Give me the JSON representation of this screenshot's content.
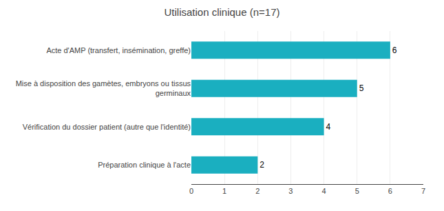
{
  "chart_data": {
    "type": "bar",
    "orientation": "horizontal",
    "title": "Utilisation clinique (n=17)",
    "categories": [
      "Préparation clinique à l'acte",
      "Vérification du dossier patient (autre que l'identité)",
      "Mise à disposition des gamètes, embryons ou tissus\ngerminaux",
      "Acte d'AMP (transfert, insémination, greffe)"
    ],
    "values": [
      2,
      4,
      5,
      6
    ],
    "color": "#1AAFC0",
    "xlim": [
      0,
      7
    ],
    "xticks": [
      0,
      1,
      2,
      3,
      4,
      5,
      6,
      7
    ],
    "grid": true,
    "data_labels": true
  }
}
